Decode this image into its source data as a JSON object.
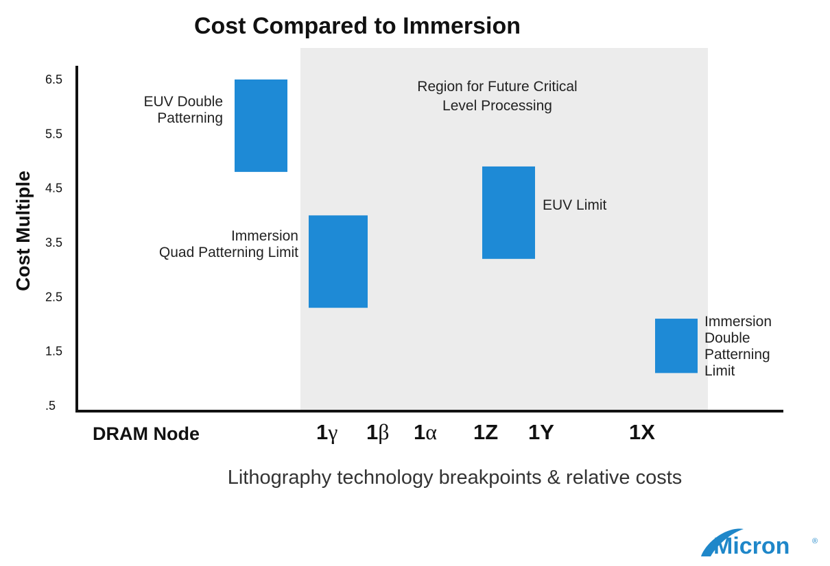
{
  "chart_data": {
    "type": "range-bar",
    "title": "Cost Compared to Immersion",
    "ylabel": "Cost Multiple",
    "xlabel": "Lithography technology breakpoints & relative costs",
    "x_axis_label": "DRAM Node",
    "yticks": [
      ".5",
      "1.5",
      "2.5",
      "3.5",
      "4.5",
      "5.5",
      "6.5"
    ],
    "ytick_values": [
      0.5,
      1.5,
      2.5,
      3.5,
      4.5,
      5.5,
      6.5
    ],
    "ylim": [
      0.5,
      6.5
    ],
    "x_nodes": [
      {
        "label": "1",
        "suffix": "γ"
      },
      {
        "label": "1",
        "suffix": "β"
      },
      {
        "label": "1",
        "suffix": "α"
      },
      {
        "label": "1Z",
        "suffix": ""
      },
      {
        "label": "1Y",
        "suffix": ""
      },
      {
        "label": "1X",
        "suffix": ""
      }
    ],
    "region_label": [
      "Region for Future Critical",
      "Level Processing"
    ],
    "bar_color": "#1e8ad6",
    "region_color": "#ececec",
    "bars": [
      {
        "name": "EUV Double Patterning",
        "label_lines": [
          "EUV Double",
          "Patterning"
        ],
        "low": 4.8,
        "high": 6.5
      },
      {
        "name": "Immersion Quad Patterning Limit",
        "label_lines": [
          "Immersion",
          "Quad Patterning Limit"
        ],
        "low": 2.3,
        "high": 4.0
      },
      {
        "name": "EUV Limit",
        "label_lines": [
          "EUV Limit"
        ],
        "low": 3.2,
        "high": 4.9
      },
      {
        "name": "Immersion Double Patterning Limit",
        "label_lines": [
          "Immersion",
          "Double",
          "Patterning",
          "Limit"
        ],
        "low": 1.1,
        "high": 2.1
      }
    ]
  },
  "logo": {
    "text": "Micron",
    "registered": "®"
  }
}
